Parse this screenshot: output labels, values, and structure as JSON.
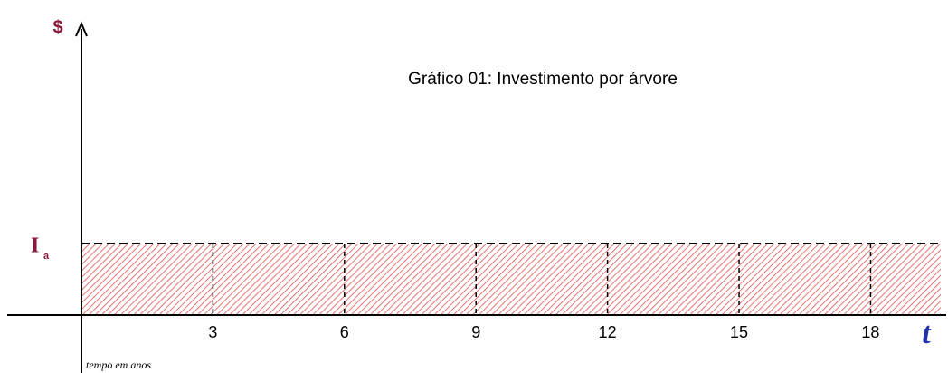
{
  "chart_data": {
    "type": "area",
    "title": "Gráfico 01: Investimento por árvore",
    "y_label": "$",
    "level_label": "I",
    "level_subscript": "a",
    "x_label": "t",
    "x_caption": "tempo em anos",
    "xlim": [
      0,
      19.6
    ],
    "xticks": [
      3,
      6,
      9,
      12,
      15,
      18
    ],
    "color": "#e05050"
  }
}
